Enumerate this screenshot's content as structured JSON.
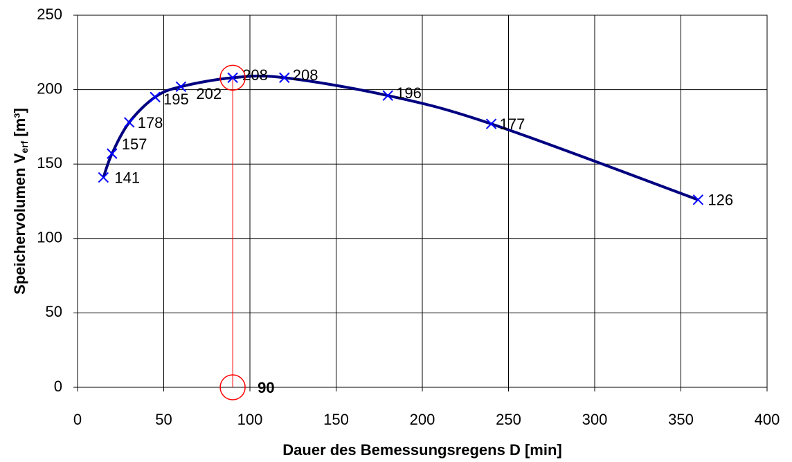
{
  "chart_data": {
    "type": "line",
    "xlabel": "Dauer des Bemessungsregens D [min]",
    "ylabel": [
      "Speichervolumen V",
      "erf",
      "[m³]"
    ],
    "x": [
      15,
      20,
      30,
      45,
      60,
      90,
      120,
      180,
      240,
      360
    ],
    "series": [
      {
        "color": "#000080",
        "marker_color": "#0000ff",
        "values": [
          141,
          157,
          178,
          195,
          202,
          208,
          208,
          196,
          177,
          126
        ]
      }
    ],
    "xlim": [
      0,
      400
    ],
    "xticks": [
      0,
      50,
      100,
      150,
      200,
      250,
      300,
      350,
      400
    ],
    "ylim": [
      0,
      250
    ],
    "yticks": [
      0,
      50,
      100,
      150,
      200,
      250
    ],
    "grid": true,
    "annotation": {
      "x": 90,
      "y": 208,
      "color": "#ff0000"
    }
  }
}
